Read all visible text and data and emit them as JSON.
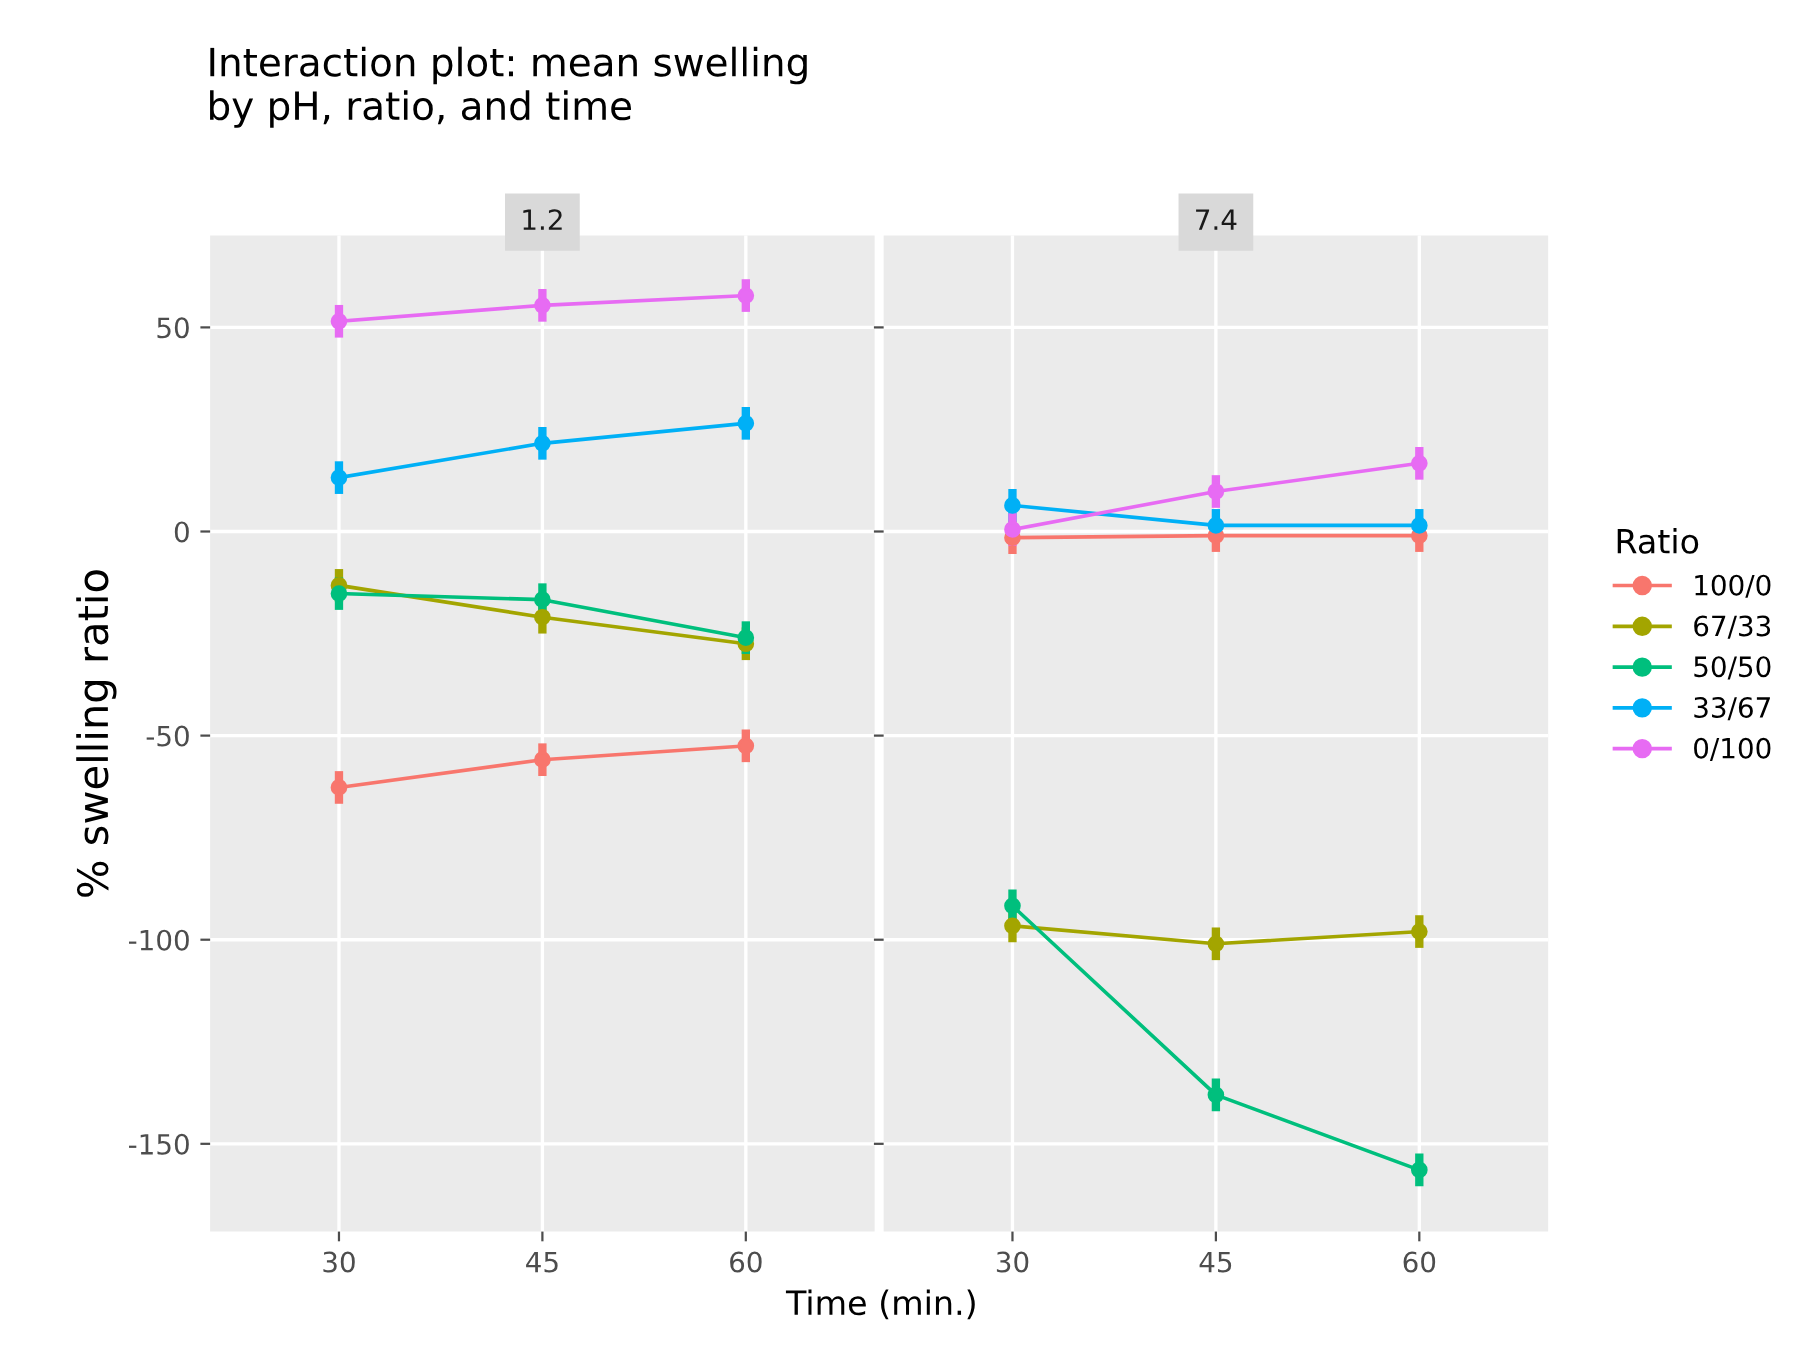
{
  "chart_data": [
    {
      "type": "line",
      "title": "Interaction plot: mean swelling\nby pH, ratio, and time",
      "subtitle": "1.2",
      "xlabel": "Time (min.)",
      "ylabel": "% swelling ratio",
      "legend_title": "Ratio",
      "legend": "right",
      "x": [
        30,
        45,
        60
      ],
      "xlim": [
        20.5,
        69.5
      ],
      "xticks": [
        30,
        45,
        60
      ],
      "ylim": [
        -171.5,
        72.5
      ],
      "yticks": [
        -150,
        -100,
        -50,
        0,
        50
      ],
      "grid": true,
      "marker": "circle",
      "line_style": "solid",
      "series": [
        {
          "name": "100/0",
          "color": "#f8766d",
          "values": [
            -62.7,
            -55.9,
            -52.5
          ],
          "errors": [
            4,
            4,
            4
          ]
        },
        {
          "name": "67/33",
          "color": "#a3a500",
          "values": [
            -13.2,
            -21,
            -27.5
          ],
          "errors": [
            4,
            4,
            4
          ]
        },
        {
          "name": "50/50",
          "color": "#00bf7d",
          "values": [
            -15.2,
            -16.7,
            -26
          ],
          "errors": [
            4,
            4,
            4
          ]
        },
        {
          "name": "33/67",
          "color": "#00b0f6",
          "values": [
            13.2,
            21.6,
            26.5
          ],
          "errors": [
            4,
            4,
            4
          ]
        },
        {
          "name": "0/100",
          "color": "#e76bf3",
          "values": [
            51.5,
            55.4,
            57.8
          ],
          "errors": [
            4,
            4,
            4
          ]
        }
      ]
    },
    {
      "type": "line",
      "subtitle": "7.4",
      "tick_labels": "x",
      "x": [
        30,
        45,
        60
      ],
      "xlim": [
        20.5,
        69.5
      ],
      "xticks": [
        30,
        45,
        60
      ],
      "ylim": [
        -171.5,
        72.5
      ],
      "yticks": [
        -150,
        -100,
        -50,
        0,
        50
      ],
      "grid": true,
      "marker": "circle",
      "line_style": "solid",
      "series": [
        {
          "color": "#f8766d",
          "values": [
            -1.5,
            -1,
            -1
          ],
          "errors": [
            4,
            4,
            4
          ]
        },
        {
          "color": "#a3a500",
          "values": [
            -96.6,
            -101,
            -98
          ],
          "errors": [
            4,
            4,
            4
          ]
        },
        {
          "color": "#00bf7d",
          "values": [
            -91.7,
            -138,
            -156.4
          ],
          "errors": [
            4,
            4,
            4
          ]
        },
        {
          "color": "#00b0f6",
          "values": [
            6.4,
            1.5,
            1.5
          ],
          "errors": [
            4,
            4,
            4
          ]
        },
        {
          "color": "#e76bf3",
          "values": [
            0.5,
            9.8,
            16.7
          ],
          "errors": [
            4,
            4,
            4
          ]
        }
      ]
    }
  ]
}
